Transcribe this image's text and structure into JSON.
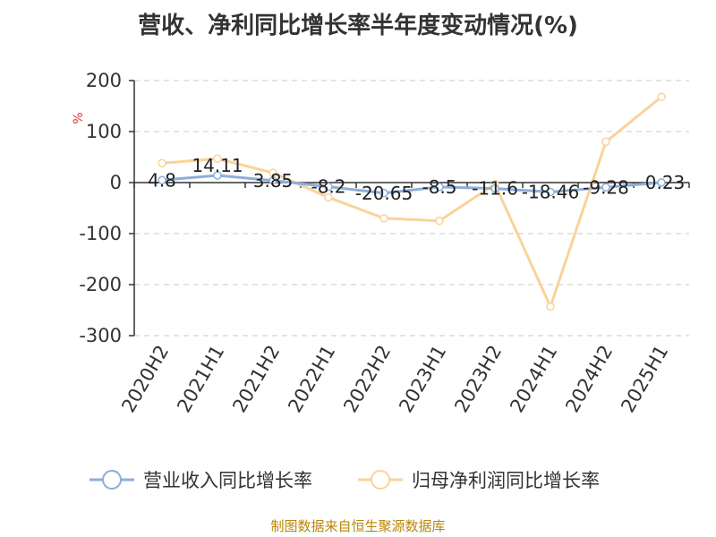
{
  "title": "营收、净利同比增长率半年度变动情况(%)",
  "source": "制图数据来自恒生聚源数据库",
  "colors": {
    "revenue": "#8daed8",
    "profit": "#f9d39a",
    "grid": "#c8c8c8",
    "axis": "#333333"
  },
  "chart_data": {
    "type": "line",
    "categories": [
      "2020H2",
      "2021H1",
      "2021H2",
      "2022H1",
      "2022H2",
      "2023H1",
      "2023H2",
      "2024H1",
      "2024H2",
      "2025H1"
    ],
    "ylabel": "%",
    "ylim": [
      -300,
      200
    ],
    "yticks": [
      "200",
      "100",
      "0",
      "-100",
      "-200",
      "-300"
    ],
    "grid": true,
    "legend_position": "bottom",
    "series": [
      {
        "name": "营业收入同比增长率",
        "values": [
          4.8,
          14.11,
          3.85,
          -8.2,
          -20.65,
          -8.5,
          -11.6,
          -18.46,
          -9.28,
          0.23
        ],
        "labels": [
          "4.8",
          "14.11",
          "3.85",
          "-8.2",
          "-20.65",
          "-8.5",
          "-11.6",
          "-18.46",
          "-9.28",
          "0.23"
        ]
      },
      {
        "name": "归母净利润同比增长率",
        "values": [
          38,
          47,
          19,
          -29,
          -70,
          -75,
          -3,
          -243,
          80,
          168
        ]
      }
    ]
  }
}
